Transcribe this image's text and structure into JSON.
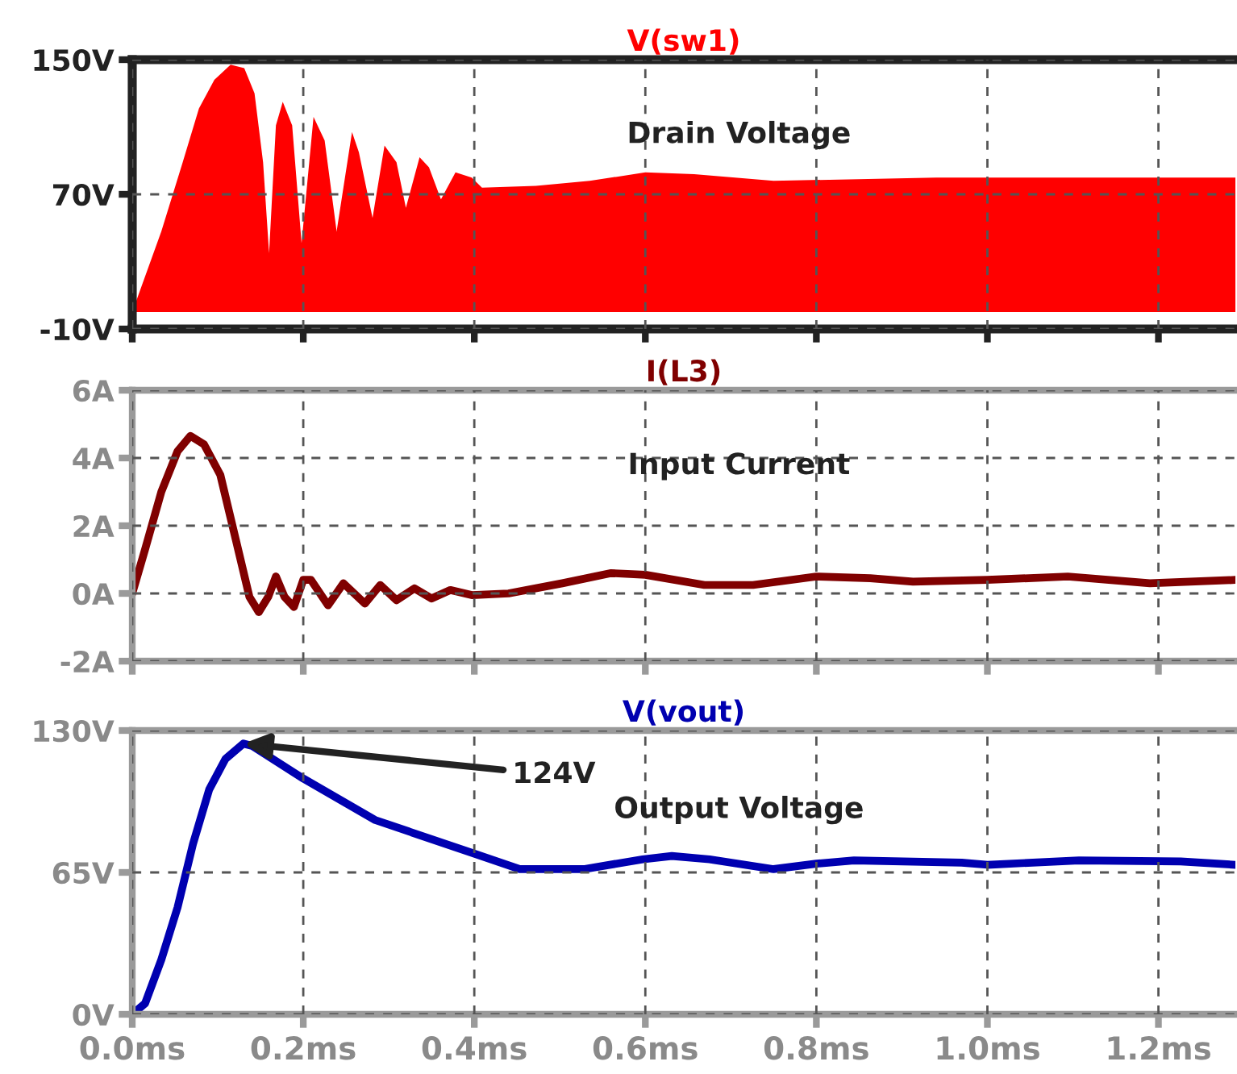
{
  "chart_data": [
    {
      "type": "area",
      "title": "V(sw1)",
      "annotations": [
        "Drain Voltage"
      ],
      "xlim": [
        0,
        1.29
      ],
      "xticks": [
        0,
        0.2,
        0.4,
        0.6,
        0.8,
        1.0,
        1.2
      ],
      "ylim": [
        -10,
        150
      ],
      "yticks": [
        {
          "value": -10,
          "label": "-10V"
        },
        {
          "value": 70,
          "label": "70V"
        },
        {
          "value": 150,
          "label": "150V"
        }
      ],
      "grid": true,
      "tick_labels": "y",
      "series": [
        {
          "color": "#ff0000",
          "x": [
            0,
            0.034,
            0.059,
            0.078,
            0.096,
            0.115,
            0.131,
            0.143,
            0.153,
            0.16,
            0.168,
            0.176,
            0.187,
            0.198,
            0.212,
            0.225,
            0.239,
            0.257,
            0.265,
            0.281,
            0.295,
            0.309,
            0.32,
            0.336,
            0.347,
            0.361,
            0.378,
            0.397,
            0.409,
            0.472,
            0.535,
            0.6,
            0.657,
            0.75,
            0.94,
            1.19,
            1.29
          ],
          "values": [
            0,
            48,
            89,
            121,
            138,
            147,
            145,
            130,
            89,
            35,
            111,
            125,
            111,
            41,
            116,
            102,
            48,
            107,
            95,
            56,
            99,
            89,
            62,
            92,
            86,
            67,
            83,
            80,
            74,
            75,
            78,
            83,
            82,
            78,
            80,
            80,
            80
          ]
        }
      ]
    },
    {
      "type": "line",
      "title": "I(L3)",
      "annotations": [
        "Input Current"
      ],
      "xlim": [
        0,
        1.29
      ],
      "xticks": [
        0,
        0.2,
        0.4,
        0.6,
        0.8,
        1.0,
        1.2
      ],
      "ylim": [
        -2,
        6
      ],
      "yticks": [
        {
          "value": -2,
          "label": "-2A"
        },
        {
          "value": 0,
          "label": "0A"
        },
        {
          "value": 2,
          "label": "2A"
        },
        {
          "value": 4,
          "label": "4A"
        },
        {
          "value": 6,
          "label": "6A"
        }
      ],
      "grid": true,
      "tick_labels": "y",
      "series": [
        {
          "color": "#800000",
          "x": [
            0,
            0.015,
            0.034,
            0.053,
            0.068,
            0.084,
            0.103,
            0.121,
            0.137,
            0.148,
            0.159,
            0.168,
            0.178,
            0.189,
            0.2,
            0.209,
            0.229,
            0.247,
            0.272,
            0.29,
            0.309,
            0.33,
            0.35,
            0.372,
            0.397,
            0.44,
            0.503,
            0.56,
            0.6,
            0.669,
            0.726,
            0.8,
            0.863,
            0.913,
            1.0,
            1.094,
            1.19,
            1.29
          ],
          "values": [
            0,
            1.3,
            3.0,
            4.2,
            4.65,
            4.4,
            3.5,
            1.6,
            -0.1,
            -0.55,
            -0.1,
            0.5,
            -0.1,
            -0.4,
            0.4,
            0.4,
            -0.35,
            0.3,
            -0.3,
            0.25,
            -0.2,
            0.15,
            -0.15,
            0.1,
            -0.05,
            0,
            0.3,
            0.6,
            0.55,
            0.25,
            0.25,
            0.5,
            0.45,
            0.35,
            0.4,
            0.5,
            0.3,
            0.4
          ]
        }
      ]
    },
    {
      "type": "line",
      "title": "V(vout)",
      "annotations": [
        "Output Voltage",
        {
          "text": "124V",
          "x": 0.13,
          "y": 124
        }
      ],
      "xlim": [
        0,
        1.29
      ],
      "xticks": [
        {
          "value": 0,
          "label": "0.0ms"
        },
        {
          "value": 0.2,
          "label": "0.2ms"
        },
        {
          "value": 0.4,
          "label": "0.4ms"
        },
        {
          "value": 0.6,
          "label": "0.6ms"
        },
        {
          "value": 0.8,
          "label": "0.8ms"
        },
        {
          "value": 1.0,
          "label": "1.0ms"
        },
        {
          "value": 1.2,
          "label": "1.2ms"
        }
      ],
      "ylim": [
        0,
        130
      ],
      "yticks": [
        {
          "value": 0,
          "label": "0V"
        },
        {
          "value": 65,
          "label": "65V"
        },
        {
          "value": 130,
          "label": "130V"
        }
      ],
      "grid": true,
      "series": [
        {
          "color": "#0000b0",
          "x": [
            0,
            0.015,
            0.034,
            0.053,
            0.071,
            0.09,
            0.109,
            0.13,
            0.14,
            0.2,
            0.284,
            0.397,
            0.453,
            0.528,
            0.597,
            0.631,
            0.675,
            0.75,
            0.8,
            0.844,
            0.97,
            1.0,
            1.107,
            1.226,
            1.29
          ],
          "values": [
            0,
            5,
            25,
            49,
            78,
            103,
            117,
            124,
            123,
            108,
            89,
            74,
            66.5,
            66.5,
            71,
            72.5,
            71,
            66.5,
            69,
            70.5,
            69.5,
            68.5,
            70.5,
            70,
            68.5
          ]
        }
      ]
    }
  ]
}
